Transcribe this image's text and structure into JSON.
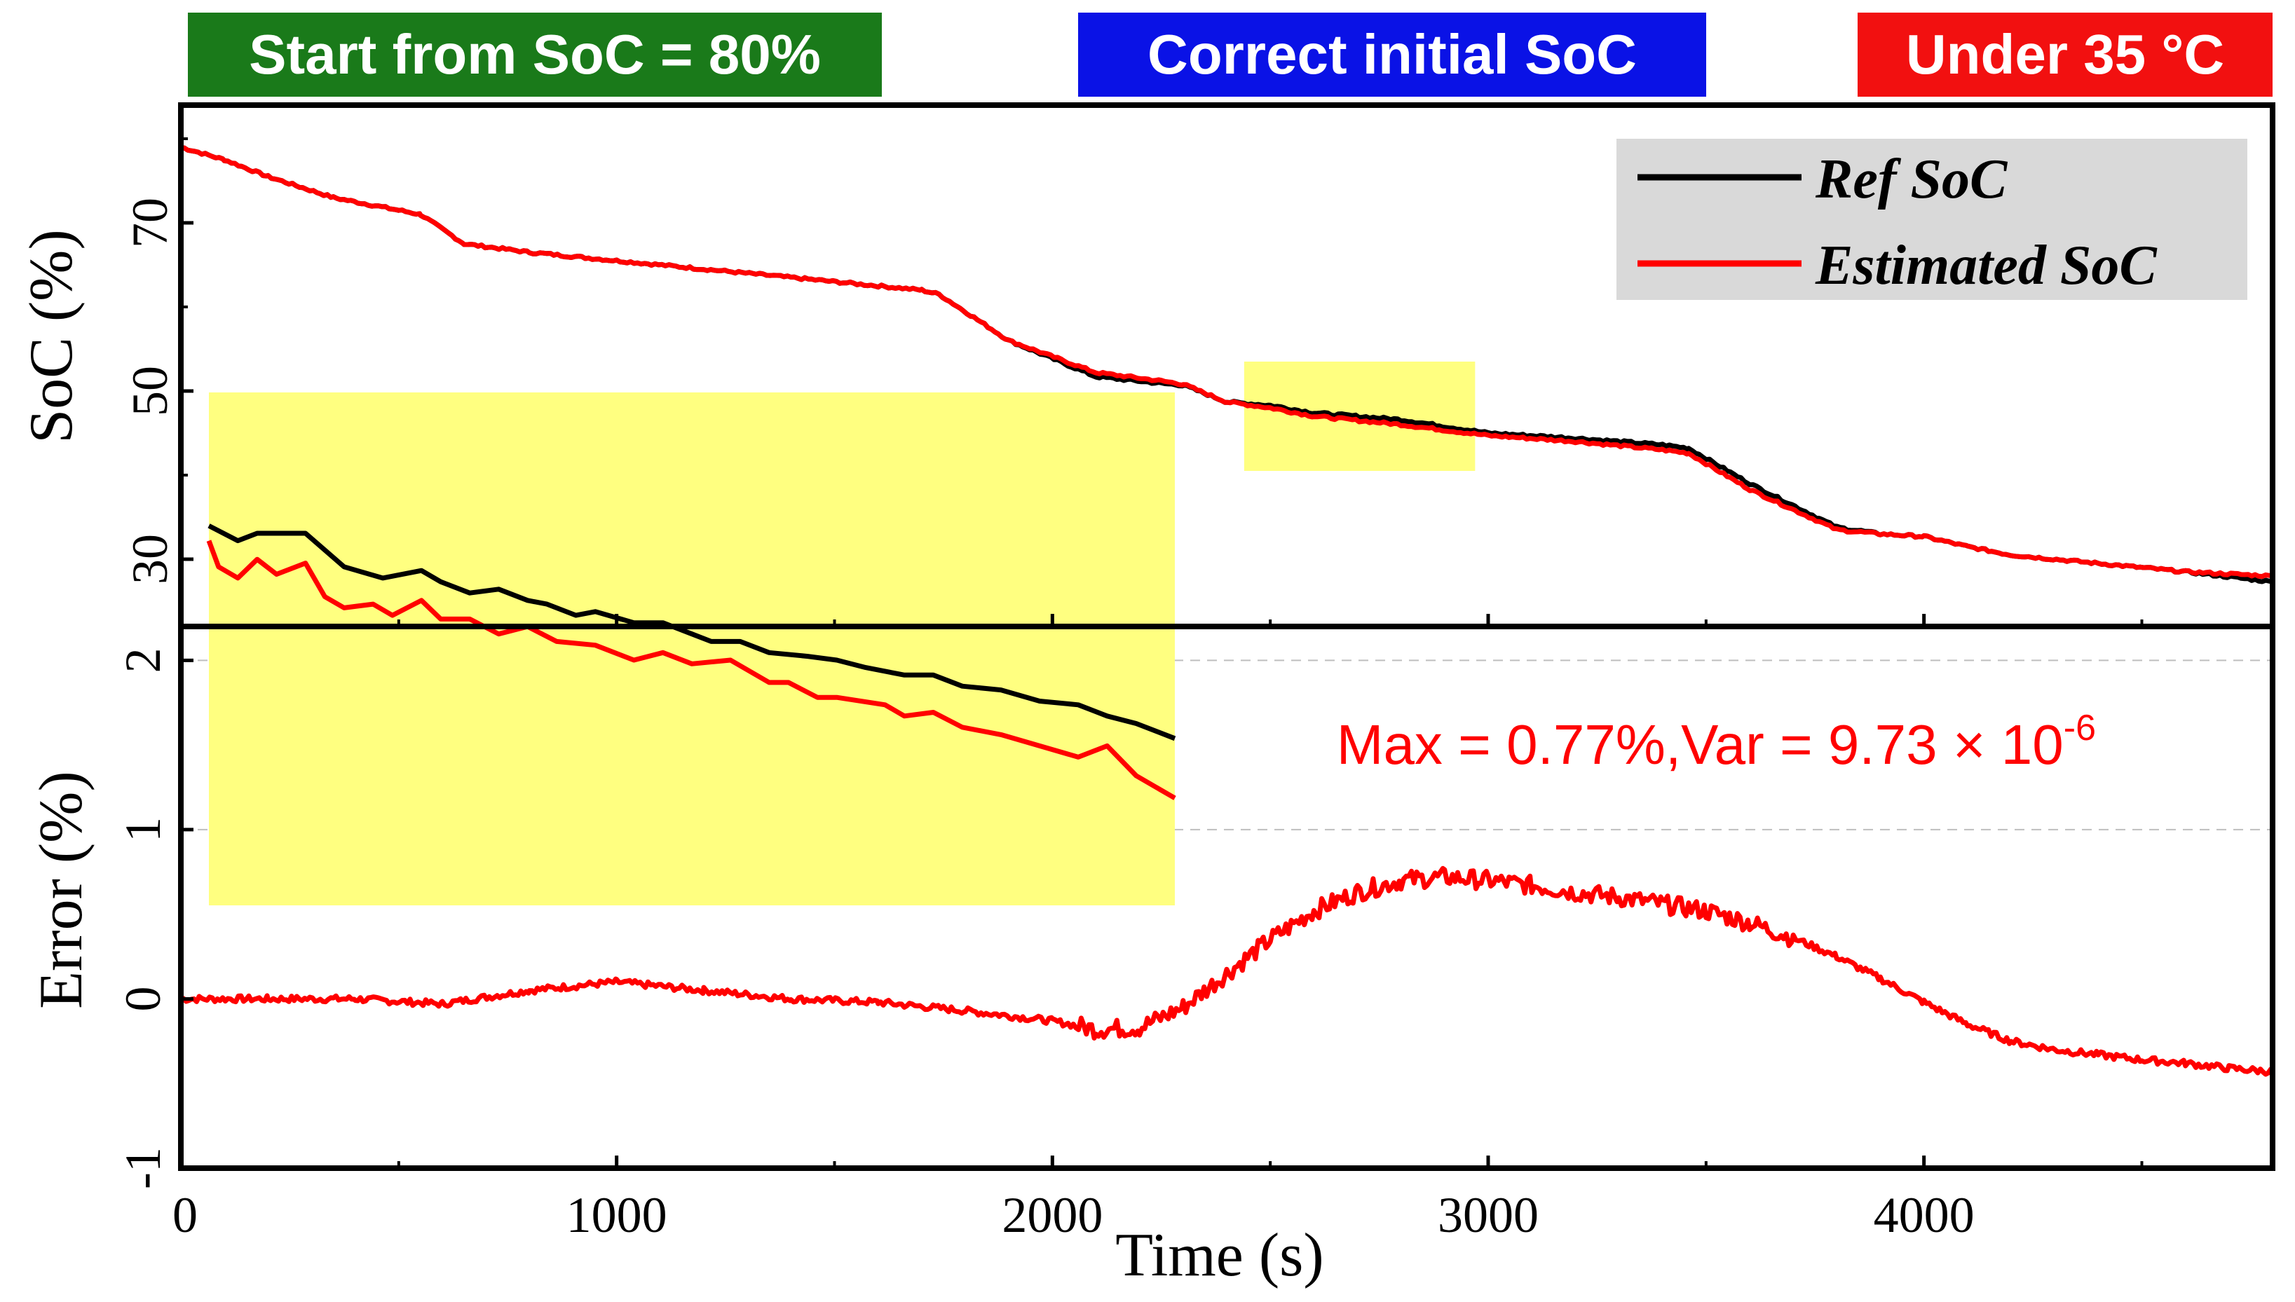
{
  "badges": [
    {
      "label": "Start from SoC = 80%",
      "color": "#1a7a1a"
    },
    {
      "label": "Correct initial SoC",
      "color": "#0a12e6"
    },
    {
      "label": "Under 35 °C",
      "color": "#f21010"
    }
  ],
  "colors": {
    "ref": "#000000",
    "estimated": "#ff0000",
    "highlight": "#ffff80",
    "legend_bg": "#d9d9d9"
  },
  "chart_data": [
    {
      "type": "line",
      "ylabel": "SoC (%)",
      "xlim": [
        0,
        4800
      ],
      "ylim": [
        22,
        84
      ],
      "yticks": [
        30,
        50,
        70
      ],
      "legend": [
        "Ref SoC",
        "Estimated SoC"
      ],
      "legend_position": "top-right",
      "highlight": {
        "x": [
          2440,
          2970
        ],
        "y": [
          40.5,
          53.5
        ]
      },
      "series": [
        {
          "name": "Ref SoC",
          "x": [
            0,
            100,
            200,
            350,
            500,
            550,
            650,
            800,
            1000,
            1200,
            1400,
            1600,
            1700,
            1740,
            1900,
            2100,
            2250,
            2300,
            2400,
            2500,
            2600,
            2800,
            3000,
            3200,
            3400,
            3460,
            3600,
            3800,
            3900,
            4000,
            4100,
            4200,
            4400,
            4600,
            4800
          ],
          "values": [
            79,
            77.5,
            75.5,
            73,
            71.5,
            71,
            67.5,
            66.5,
            65.5,
            64.5,
            63.5,
            62.5,
            62,
            61.5,
            56,
            51.7,
            50.9,
            50.7,
            48.7,
            48.3,
            47.4,
            46.6,
            45,
            44.4,
            43.6,
            43.2,
            39,
            33.8,
            33,
            32.7,
            31.5,
            30.5,
            29.5,
            28.5,
            27.3
          ]
        },
        {
          "name": "Estimated SoC",
          "x": [
            0,
            100,
            200,
            350,
            500,
            550,
            650,
            800,
            1000,
            1200,
            1400,
            1600,
            1700,
            1740,
            1900,
            2100,
            2250,
            2300,
            2400,
            2500,
            2600,
            2800,
            3000,
            3200,
            3400,
            3460,
            3600,
            3800,
            3900,
            4000,
            4100,
            4200,
            4400,
            4600,
            4800
          ],
          "values": [
            79,
            77.5,
            75.5,
            73,
            71.5,
            71,
            67.5,
            66.5,
            65.5,
            64.5,
            63.5,
            62.5,
            62,
            61.5,
            56,
            52.2,
            51.2,
            50.8,
            48.7,
            48,
            47,
            46,
            44.7,
            44,
            43,
            42.6,
            38.3,
            33.5,
            33,
            32.7,
            31.5,
            30.5,
            29.5,
            28.5,
            28
          ]
        }
      ],
      "inset": {
        "note": "zoomed view of highlighted region",
        "series": [
          {
            "name": "Ref SoC",
            "x": [
              0,
              0.03,
              0.05,
              0.1,
              0.14,
              0.18,
              0.22,
              0.24,
              0.27,
              0.3,
              0.33,
              0.35,
              0.38,
              0.4,
              0.44,
              0.47,
              0.5,
              0.52,
              0.55,
              0.58,
              0.62,
              0.65,
              0.68,
              0.72,
              0.75,
              0.78,
              0.82,
              0.86,
              0.9,
              0.93,
              0.96,
              1.0
            ],
            "values": [
              50.3,
              49.9,
              50.1,
              50.1,
              49.2,
              48.9,
              49.1,
              48.8,
              48.5,
              48.6,
              48.3,
              48.2,
              47.9,
              48.0,
              47.7,
              47.7,
              47.4,
              47.2,
              47.2,
              46.9,
              46.8,
              46.7,
              46.5,
              46.3,
              46.3,
              46.0,
              45.9,
              45.6,
              45.5,
              45.2,
              45.0,
              44.6
            ]
          },
          {
            "name": "Estimated SoC",
            "x": [
              0,
              0.01,
              0.03,
              0.05,
              0.07,
              0.1,
              0.12,
              0.14,
              0.17,
              0.19,
              0.22,
              0.24,
              0.27,
              0.3,
              0.33,
              0.36,
              0.4,
              0.44,
              0.47,
              0.5,
              0.54,
              0.58,
              0.6,
              0.63,
              0.65,
              0.7,
              0.72,
              0.75,
              0.78,
              0.82,
              0.86,
              0.9,
              0.93,
              0.96,
              1.0
            ],
            "values": [
              49.9,
              49.2,
              48.9,
              49.4,
              49.0,
              49.3,
              48.4,
              48.1,
              48.2,
              47.9,
              48.3,
              47.8,
              47.8,
              47.4,
              47.6,
              47.2,
              47.1,
              46.7,
              46.9,
              46.6,
              46.7,
              46.1,
              46.1,
              45.7,
              45.7,
              45.5,
              45.2,
              45.3,
              44.9,
              44.7,
              44.4,
              44.1,
              44.4,
              43.6,
              43.0
            ]
          }
        ]
      }
    },
    {
      "type": "line",
      "xlabel": "Time (s)",
      "ylabel": "Error (%)",
      "xlim": [
        0,
        4800
      ],
      "ylim": [
        -1,
        2.2
      ],
      "yticks": [
        -1,
        0,
        1,
        2
      ],
      "xticks": [
        0,
        1000,
        2000,
        3000,
        4000
      ],
      "grid": "dashed horizontal",
      "annotation": {
        "prefix": "Max = 0.77%,Var = 9.73 × 10",
        "exponent": "-6",
        "color": "#ff0000"
      },
      "series": [
        {
          "name": "Error",
          "x": [
            0,
            200,
            400,
            600,
            800,
            1000,
            1200,
            1400,
            1600,
            1800,
            2000,
            2100,
            2200,
            2300,
            2400,
            2500,
            2600,
            2700,
            2800,
            2900,
            3000,
            3100,
            3200,
            3300,
            3400,
            3500,
            3600,
            3700,
            3800,
            3900,
            4000,
            4100,
            4200,
            4300,
            4400,
            4500,
            4600,
            4700,
            4800
          ],
          "values": [
            0.0,
            0.0,
            0.0,
            -0.03,
            0.05,
            0.1,
            0.05,
            0.0,
            -0.02,
            -0.07,
            -0.13,
            -0.18,
            -0.17,
            -0.05,
            0.15,
            0.35,
            0.52,
            0.63,
            0.7,
            0.72,
            0.7,
            0.67,
            0.63,
            0.6,
            0.56,
            0.52,
            0.45,
            0.36,
            0.25,
            0.12,
            -0.02,
            -0.15,
            -0.25,
            -0.3,
            -0.33,
            -0.36,
            -0.38,
            -0.41,
            -0.43
          ]
        }
      ]
    }
  ]
}
